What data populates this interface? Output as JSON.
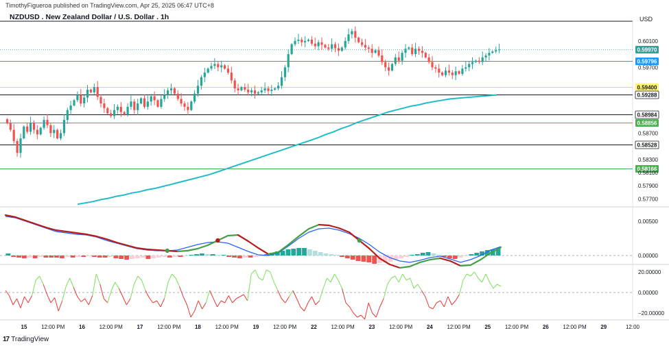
{
  "header": {
    "publisher": "TimothyFigueroa published on TradingView.com, Apr 25, 2025 06:47 UTC+8",
    "title": "NZDUSD . New Zealand Dollar / U.S. Dollar . 1h",
    "currency": "USD"
  },
  "branding": {
    "logo": "17",
    "name": "TradingView"
  },
  "colors": {
    "bull": "#26a69a",
    "bear": "#ef5350",
    "ma": "#1fbcc9",
    "hline_black": "#131722",
    "hline_blue": "#2196f3",
    "hline_yellow": "#f5e11a",
    "hline_green": "#4caf50",
    "macd_fast": "#2962ff",
    "macd_signal_up": "#43a047",
    "macd_signal_down": "#b71c1c",
    "osc_up": "#7be05a",
    "osc_down": "#e53935"
  },
  "chart_data": [
    {
      "type": "candlestick",
      "name": "NZDUSD 1h",
      "price_axis": {
        "ticks": [
          "0.60100",
          "0.59700",
          "0.58700",
          "0.58300",
          "0.58100",
          "0.57900",
          "0.57700"
        ]
      },
      "ylim": [
        0.576,
        0.604
      ],
      "time_axis": {
        "labels": [
          "15",
          "12:00 PM",
          "16",
          "12:00 PM",
          "17",
          "12:00 PM",
          "18",
          "12:00 PM",
          "19",
          "12:00 PM",
          "22",
          "12:00 PM",
          "23",
          "12:00 PM",
          "24",
          "12:00 PM",
          "25",
          "12:00 PM",
          "26",
          "12:00 PM",
          "29",
          "12:00"
        ],
        "bold": [
          true,
          false,
          true,
          false,
          true,
          false,
          true,
          false,
          true,
          false,
          true,
          false,
          true,
          false,
          true,
          false,
          true,
          false,
          true,
          false,
          true,
          false
        ]
      },
      "current_price": "0.59970",
      "horizontal_levels": [
        {
          "value": 0.59796,
          "label": "0.59796",
          "style": "blue"
        },
        {
          "value": 0.594,
          "label": "0.59400",
          "style": "yellow"
        },
        {
          "value": 0.59288,
          "label": "0.59288",
          "style": "black"
        },
        {
          "value": 0.58984,
          "label": "0.58984",
          "style": "black"
        },
        {
          "value": 0.58856,
          "label": "0.58856",
          "style": "green"
        },
        {
          "value": 0.58528,
          "label": "0.58528",
          "style": "black"
        },
        {
          "value": 0.58166,
          "label": "0.58166",
          "style": "green"
        }
      ],
      "closes": [
        0.5885,
        0.5875,
        0.5858,
        0.584,
        0.5862,
        0.588,
        0.5872,
        0.5886,
        0.5875,
        0.5868,
        0.5878,
        0.589,
        0.5882,
        0.587,
        0.5875,
        0.5862,
        0.587,
        0.589,
        0.5905,
        0.5912,
        0.592,
        0.5928,
        0.5915,
        0.5924,
        0.5936,
        0.5932,
        0.594,
        0.5925,
        0.5915,
        0.5908,
        0.59,
        0.5896,
        0.5905,
        0.591,
        0.5902,
        0.5898,
        0.591,
        0.5918,
        0.5905,
        0.5915,
        0.5923,
        0.591,
        0.5918,
        0.5926,
        0.592,
        0.591,
        0.5922,
        0.5928,
        0.5935,
        0.5938,
        0.593,
        0.5922,
        0.5915,
        0.591,
        0.5905,
        0.5918,
        0.593,
        0.5942,
        0.5955,
        0.5962,
        0.5968,
        0.5972,
        0.5975,
        0.597,
        0.5973,
        0.5968,
        0.5962,
        0.595,
        0.5938,
        0.5935,
        0.594,
        0.5936,
        0.5932,
        0.5935,
        0.593,
        0.5932,
        0.5935,
        0.5938,
        0.5934,
        0.5936,
        0.5938,
        0.5942,
        0.5955,
        0.597,
        0.599,
        0.6005,
        0.601,
        0.6012,
        0.6008,
        0.601,
        0.6012,
        0.6006,
        0.6002,
        0.6008,
        0.6004,
        0.6,
        0.5998,
        0.6005,
        0.5999,
        0.5995,
        0.6,
        0.601,
        0.602,
        0.6025,
        0.6015,
        0.6008,
        0.6004,
        0.6,
        0.5998,
        0.5992,
        0.5996,
        0.5988,
        0.5978,
        0.597,
        0.5965,
        0.5975,
        0.5985,
        0.598,
        0.5992,
        0.5998,
        0.6,
        0.599,
        0.5998,
        0.5995,
        0.5992,
        0.5985,
        0.5978,
        0.597,
        0.5968,
        0.5962,
        0.5958,
        0.5965,
        0.5962,
        0.5958,
        0.5964,
        0.596,
        0.5968,
        0.597,
        0.5975,
        0.5978,
        0.598,
        0.5978,
        0.5985,
        0.5988,
        0.5992,
        0.5994,
        0.5996,
        0.5997
      ],
      "ma_series": [
        0.5762,
        0.5764,
        0.5766,
        0.5769,
        0.5771,
        0.5774,
        0.5776,
        0.5779,
        0.5781,
        0.5784,
        0.5786,
        0.5789,
        0.5792,
        0.5795,
        0.5798,
        0.5801,
        0.5804,
        0.5807,
        0.5811,
        0.5815,
        0.5819,
        0.5823,
        0.5827,
        0.5831,
        0.5835,
        0.5839,
        0.5843,
        0.5847,
        0.5851,
        0.5855,
        0.5859,
        0.5863,
        0.5868,
        0.5872,
        0.5877,
        0.5881,
        0.5886,
        0.589,
        0.5894,
        0.5898,
        0.5902,
        0.5905,
        0.5908,
        0.5911,
        0.5913,
        0.5916,
        0.5918,
        0.592,
        0.5922,
        0.5923,
        0.5924,
        0.5925,
        0.5926,
        0.5927,
        0.5928
      ],
      "ma_x_range": [
        0.115,
        0.783
      ]
    },
    {
      "type": "macd",
      "ylim": [
        -0.0012,
        0.0068
      ],
      "axis_ticks": [
        "0.00500",
        "0.00000"
      ],
      "fast": [
        0.0057,
        0.0055,
        0.005,
        0.0045,
        0.004,
        0.0035,
        0.0033,
        0.0031,
        0.003,
        0.0027,
        0.0022,
        0.0018,
        0.0014,
        0.001,
        0.0008,
        0.0007,
        0.0007,
        0.0008,
        0.0012,
        0.0016,
        0.0019,
        0.002,
        0.0018,
        0.0012,
        0.0006,
        0.0001,
        0.0,
        0.0004,
        0.0014,
        0.0025,
        0.0034,
        0.0039,
        0.004,
        0.0037,
        0.0032,
        0.0025,
        0.0016,
        0.0005,
        -0.0003,
        -0.0008,
        -0.001,
        -0.0007,
        -0.0003,
        -0.0001,
        -0.0005,
        -0.001,
        -0.0006,
        0.0,
        0.0008,
        0.0013
      ],
      "signal": [
        0.0059,
        0.0056,
        0.0051,
        0.0046,
        0.0041,
        0.0037,
        0.0035,
        0.0033,
        0.0031,
        0.0028,
        0.0024,
        0.0019,
        0.0015,
        0.0011,
        0.0009,
        0.0008,
        0.0007,
        0.0006,
        0.0007,
        0.001,
        0.0015,
        0.0022,
        0.0029,
        0.003,
        0.0021,
        0.0011,
        0.0002,
        0.0005,
        0.0016,
        0.0028,
        0.0039,
        0.0045,
        0.0044,
        0.004,
        0.0034,
        0.0022,
        0.001,
        -0.0004,
        -0.0013,
        -0.0018,
        -0.0016,
        -0.001,
        -0.0006,
        -0.0004,
        -0.0008,
        -0.0015,
        -0.0014,
        -0.0006,
        0.0004,
        0.0012
      ],
      "histogram": [
        0.0003,
        -0.0002,
        -0.0003,
        -0.0004,
        -0.0003,
        -0.0004,
        -0.0002,
        -0.0003,
        -0.0003,
        -0.0003,
        -0.0004,
        -0.0002,
        -0.0003,
        -0.0002,
        -0.0002,
        -0.0001,
        -0.0002,
        -0.0003,
        -0.0003,
        -0.0002,
        -0.0004,
        -0.0005,
        -0.0006,
        -0.0005,
        -0.0004,
        -0.0003,
        -0.0005,
        -0.0004,
        -0.0003,
        -0.0002,
        -0.0003,
        -0.0002,
        -0.0002,
        -0.0001,
        0.0001,
        0.0002,
        0.0003,
        0.0002,
        0.0002,
        0.0001,
        0.0001,
        -0.0002,
        -0.0003,
        -0.0004,
        -0.0003,
        -0.0003,
        -0.0002,
        -0.0001,
        0.0002,
        0.0004,
        0.0006,
        0.0007,
        0.0009,
        0.001,
        0.0011,
        0.0011,
        0.0009,
        0.0007,
        0.0005,
        0.0003,
        0.0002,
        0.0001,
        -0.0002,
        -0.0004,
        -0.0006,
        -0.0008,
        -0.0009,
        -0.001,
        -0.0012,
        -0.0011,
        -0.001,
        -0.0009,
        -0.0006,
        -0.0004,
        -0.0002,
        0.0001,
        0.0002,
        0.0004,
        0.0005,
        0.0003,
        0.0001,
        -0.0002,
        -0.0004,
        -0.0005,
        -0.0003,
        -0.0001,
        0.0002,
        0.0004,
        0.0006,
        0.0008,
        0.0009,
        0.0011
      ]
    },
    {
      "type": "oscillator",
      "ylim": [
        -26,
        26
      ],
      "axis_ticks": [
        "20.00000",
        "0.00000",
        "−20.00000"
      ],
      "values": [
        2,
        -3,
        -12,
        -6,
        -15,
        -4,
        -10,
        -3,
        12,
        16,
        8,
        -2,
        -10,
        -5,
        -18,
        -8,
        6,
        14,
        5,
        -4,
        -9,
        -6,
        -12,
        -3,
        18,
        8,
        -6,
        -10,
        2,
        10,
        4,
        -4,
        -12,
        -6,
        8,
        16,
        12,
        2,
        -5,
        -10,
        -8,
        -14,
        -6,
        10,
        18,
        14,
        6,
        -4,
        -12,
        -24,
        -18,
        -8,
        -16,
        -10,
        2,
        -6,
        -14,
        -8,
        -10,
        -3,
        -10,
        -6,
        -4,
        -2,
        -8,
        18,
        22,
        14,
        12,
        22,
        20,
        10,
        2,
        -6,
        -10,
        -4,
        2,
        -6,
        -14,
        -18,
        -10,
        -4,
        -12,
        -8,
        4,
        14,
        10,
        18,
        12,
        4,
        -10,
        -14,
        -20,
        -24,
        -22,
        -26,
        -10,
        -20,
        -24,
        -14,
        -6,
        8,
        14,
        16,
        10,
        18,
        12,
        14,
        4,
        8,
        2,
        -4,
        -14,
        -16,
        -10,
        -8,
        -14,
        -4,
        -12,
        -8,
        -2,
        12,
        18,
        16,
        20,
        14,
        10,
        18,
        10,
        4,
        8,
        6
      ]
    }
  ]
}
